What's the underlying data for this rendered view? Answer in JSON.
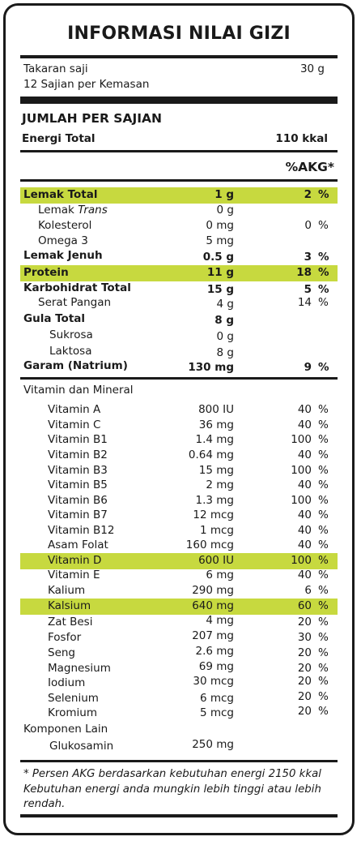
{
  "title": "INFORMASI NILAI GIZI",
  "serving": {
    "label": "Takaran saji",
    "value": "30 g",
    "per_pack": "12 Sajian per Kemasan"
  },
  "per_serving_heading": "JUMLAH PER SAJIAN",
  "energy": {
    "label": "Energi Total",
    "value": "110 kkal"
  },
  "akg_heading": "%AKG*",
  "highlight_color": "#c7d93f",
  "nutrients": [
    {
      "label": "Lemak Total",
      "amount": "1 g",
      "akg": "2",
      "unit": "%"
    },
    {
      "label": "Lemak ",
      "label_italic": "Trans",
      "amount": "0 g",
      "akg": "",
      "unit": ""
    },
    {
      "label": "Kolesterol",
      "amount": "0 mg",
      "akg": "0",
      "unit": "%"
    },
    {
      "label": "Omega 3",
      "amount": "5 mg",
      "akg": "",
      "unit": ""
    },
    {
      "label": "Lemak Jenuh",
      "amount": "0.5 g",
      "akg": "3",
      "unit": "%"
    },
    {
      "label": "Protein",
      "amount": "11 g",
      "akg": "18",
      "unit": "%"
    },
    {
      "label": "Karbohidrat Total",
      "amount": "15 g",
      "akg": "5",
      "unit": "%"
    },
    {
      "label": "Serat Pangan",
      "amount": "4 g",
      "akg": "14",
      "unit": "%"
    },
    {
      "label": "Gula Total",
      "amount": "8 g",
      "akg": "",
      "unit": ""
    },
    {
      "label": "Sukrosa",
      "amount": "0 g",
      "akg": "",
      "unit": ""
    },
    {
      "label": "Laktosa",
      "amount": "8 g",
      "akg": "",
      "unit": ""
    },
    {
      "label": "Garam (Natrium)",
      "amount": "130 mg",
      "akg": "9",
      "unit": "%"
    }
  ],
  "vitamin_heading": "Vitamin dan Mineral",
  "vitamins": [
    {
      "label": "Vitamin A",
      "amount": "800 IU",
      "akg": "40",
      "unit": "%"
    },
    {
      "label": "Vitamin C",
      "amount": "36 mg",
      "akg": "40",
      "unit": "%"
    },
    {
      "label": "Vitamin B1",
      "amount": "1.4 mg",
      "akg": "100",
      "unit": "%"
    },
    {
      "label": "Vitamin B2",
      "amount": "0.64 mg",
      "akg": "40",
      "unit": "%"
    },
    {
      "label": "Vitamin B3",
      "amount": "15 mg",
      "akg": "100",
      "unit": "%"
    },
    {
      "label": "Vitamin B5",
      "amount": "2 mg",
      "akg": "40",
      "unit": "%"
    },
    {
      "label": "Vitamin B6",
      "amount": "1.3 mg",
      "akg": "100",
      "unit": "%"
    },
    {
      "label": "Vitamin B7",
      "amount": "12 mcg",
      "akg": "40",
      "unit": "%"
    },
    {
      "label": "Vitamin B12",
      "amount": "1 mcg",
      "akg": "40",
      "unit": "%"
    },
    {
      "label": "Asam Folat",
      "amount": "160 mcg",
      "akg": "40",
      "unit": "%"
    },
    {
      "label": "Vitamin D",
      "amount": "600 IU",
      "akg": "100",
      "unit": "%"
    },
    {
      "label": "Vitamin E",
      "amount": "6 mg",
      "akg": "40",
      "unit": "%"
    },
    {
      "label": "Kalium",
      "amount": "290 mg",
      "akg": "6",
      "unit": "%"
    },
    {
      "label": "Kalsium",
      "amount": "640 mg",
      "akg": "60",
      "unit": "%"
    },
    {
      "label": "Zat Besi",
      "amount": "4 mg",
      "akg": "20",
      "unit": "%"
    },
    {
      "label": "Fosfor",
      "amount": "207 mg",
      "akg": "30",
      "unit": "%"
    },
    {
      "label": "Seng",
      "amount": "2.6 mg",
      "akg": "20",
      "unit": "%"
    },
    {
      "label": "Magnesium",
      "amount": "69 mg",
      "akg": "20",
      "unit": "%"
    },
    {
      "label": "Iodium",
      "amount": "30 mcg",
      "akg": "20",
      "unit": "%"
    },
    {
      "label": "Selenium",
      "amount": "6 mcg",
      "akg": "20",
      "unit": "%"
    },
    {
      "label": "Kromium",
      "amount": "5 mcg",
      "akg": "20",
      "unit": "%"
    }
  ],
  "other_heading": "Komponen Lain",
  "other": {
    "label": "Glukosamin",
    "amount": "250 mg"
  },
  "footnote": "* Persen AKG berdasarkan kebutuhan energi 2150 kkal Kebutuhan energi anda mungkin lebih tinggi atau lebih rendah."
}
